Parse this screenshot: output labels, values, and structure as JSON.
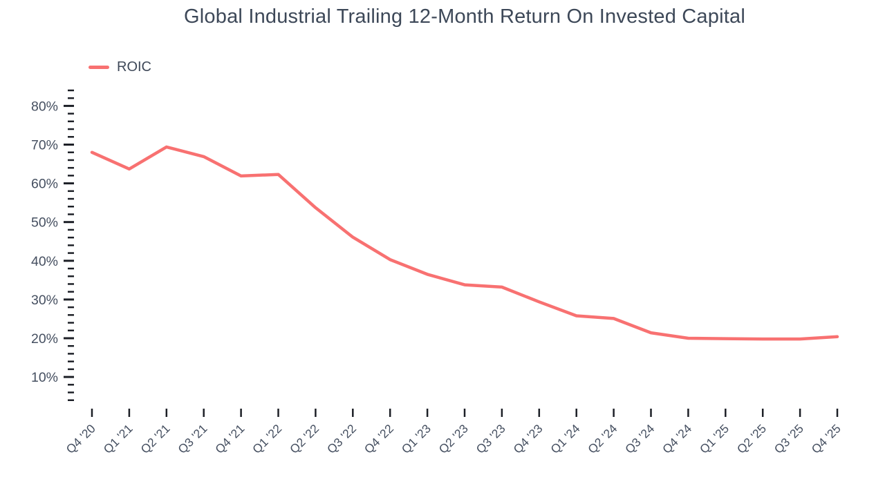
{
  "chart_data": {
    "type": "line",
    "title": "Global Industrial Trailing 12-Month Return On Invested Capital",
    "legend": [
      {
        "label": "ROIC",
        "color": "#f87171"
      }
    ],
    "categories": [
      "Q4 '20",
      "Q1 '21",
      "Q2 '21",
      "Q3 '21",
      "Q4 '21",
      "Q1 '22",
      "Q2 '22",
      "Q3 '22",
      "Q4 '22",
      "Q1 '23",
      "Q2 '23",
      "Q3 '23",
      "Q4 '23",
      "Q1 '24",
      "Q2 '24",
      "Q3 '24",
      "Q4 '24",
      "Q1 '25",
      "Q2 '25",
      "Q3 '25",
      "Q4 '25"
    ],
    "series": [
      {
        "name": "ROIC",
        "values": [
          68.0,
          63.7,
          69.4,
          66.9,
          61.9,
          62.3,
          53.7,
          46.1,
          40.3,
          36.5,
          33.8,
          33.2,
          29.4,
          25.8,
          25.1,
          21.4,
          20.0,
          19.9,
          19.8,
          19.8,
          20.4
        ]
      }
    ],
    "y_axis": {
      "unit": "percent",
      "min": 4,
      "max": 84,
      "minor_tick_step": 2,
      "major_tick_step": 10,
      "major_ticks": [
        10,
        20,
        30,
        40,
        50,
        60,
        70,
        80
      ],
      "major_tick_labels": [
        "10%",
        "20%",
        "30%",
        "40%",
        "50%",
        "60%",
        "70%",
        "80%"
      ]
    },
    "x_axis": {
      "tick_labels_rotated": true
    },
    "layout_hints": {
      "grid": "off",
      "axis_spine": "off",
      "legend_position": "top-left"
    },
    "colors": {
      "line": "#f87171",
      "title_text": "#3d4858",
      "axis_label_text": "#454f60",
      "tick_mark": "#1c1f26",
      "background": "#ffffff"
    }
  }
}
